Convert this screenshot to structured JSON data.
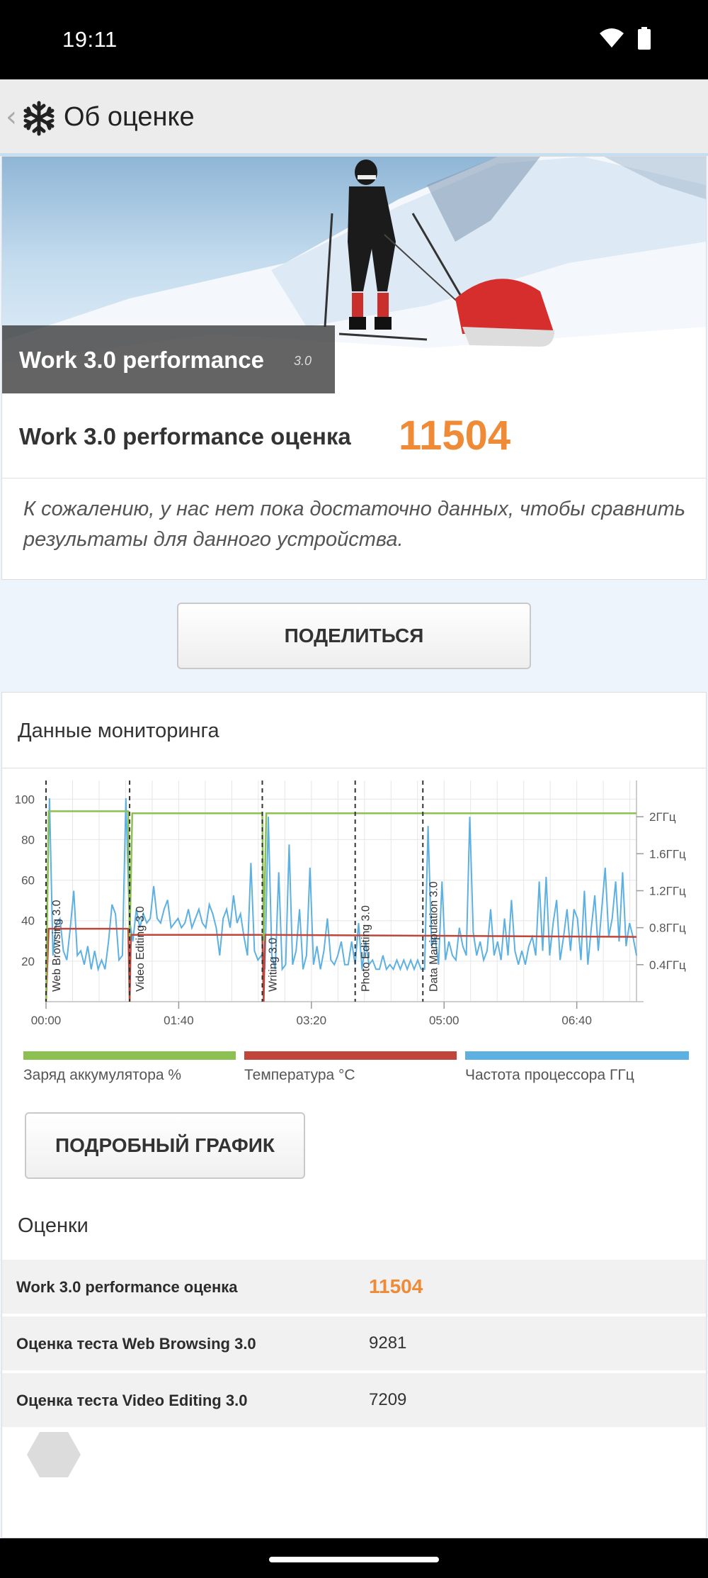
{
  "status_bar": {
    "time": "19:11",
    "icons": [
      "wifi-icon",
      "battery-icon"
    ]
  },
  "toolbar": {
    "back_icon": "chevron-left-icon",
    "app_icon": "snowflake-icon",
    "title": "Об оценке"
  },
  "hero": {
    "title": "Work 3.0 performance",
    "version": "3.0"
  },
  "score": {
    "label": "Work 3.0 performance оценка",
    "value": "11504"
  },
  "notice": "К сожалению, у нас нет пока достаточно данных, чтобы сравнить результаты для данного устройства.",
  "share_button": "ПОДЕЛИТЬСЯ",
  "monitoring": {
    "title": "Данные мониторинга",
    "detail_button": "ПОДРОБНЫЙ ГРАФИК",
    "legend": [
      {
        "label": "Заряд аккумулятора %",
        "color": "#8cc152"
      },
      {
        "label": "Температура °C",
        "color": "#c0453a"
      },
      {
        "label": "Частота процессора ГГц",
        "color": "#5db0e2"
      }
    ]
  },
  "scores": {
    "title": "Оценки",
    "rows": [
      {
        "name": "Work 3.0 performance оценка",
        "value": "11504"
      },
      {
        "name": "Оценка теста Web Browsing 3.0",
        "value": "9281"
      },
      {
        "name": "Оценка теста Video Editing 3.0",
        "value": "7209"
      }
    ]
  },
  "chart_data": {
    "type": "line",
    "x_ticks": [
      "00:00",
      "01:40",
      "03:20",
      "05:00",
      "06:40"
    ],
    "x_tick_seconds": [
      0,
      100,
      200,
      300,
      400
    ],
    "x_range_seconds": [
      0,
      445
    ],
    "y_left_ticks": [
      "20",
      "40",
      "60",
      "80",
      "100"
    ],
    "y_left_range": [
      0,
      105
    ],
    "y_right_ticks": [
      "0.4ГГц",
      "0.8ГГц",
      "1.2ГГц",
      "1.6ГГц",
      "2ГГц"
    ],
    "y_right_range_ghz": [
      0,
      2.3
    ],
    "grid": true,
    "test_markers": [
      {
        "label": "Web Browsing 3.0",
        "x": 0
      },
      {
        "label": "Video Editing 3.0",
        "x": 63
      },
      {
        "label": "Writing 3.0",
        "x": 163
      },
      {
        "label": "Photo Editing 3.0",
        "x": 233
      },
      {
        "label": "Data Manipulation 3.0",
        "x": 284
      }
    ],
    "series": [
      {
        "name": "Заряд аккумулятора %",
        "color": "#8cc152",
        "points": [
          [
            0,
            0
          ],
          [
            2,
            94
          ],
          [
            62,
            94
          ],
          [
            63,
            30
          ],
          [
            65,
            93
          ],
          [
            163,
            93
          ],
          [
            164,
            30
          ],
          [
            166,
            93
          ],
          [
            445,
            93
          ]
        ]
      },
      {
        "name": "Температура °C",
        "color": "#c0453a",
        "points": [
          [
            0,
            0
          ],
          [
            2,
            36
          ],
          [
            62,
            36
          ],
          [
            63,
            0
          ],
          [
            64,
            33
          ],
          [
            163,
            33
          ],
          [
            164,
            0
          ],
          [
            165,
            33
          ],
          [
            445,
            32
          ]
        ]
      },
      {
        "name": "Частота процессора ГГц",
        "color": "#5db0e2",
        "values_ghz": [
          0.3,
          2.2,
          0.5,
          0.85,
          0.9,
          0.55,
          0.45,
          0.8,
          1.2,
          0.5,
          0.55,
          0.4,
          0.6,
          0.35,
          0.55,
          0.35,
          0.45,
          0.35,
          0.65,
          1.05,
          0.95,
          0.45,
          0.5,
          2.2,
          0.9,
          0.65,
          1.0,
          0.8,
          0.95,
          0.85,
          0.9,
          1.25,
          0.9,
          0.85,
          1.0,
          1.1,
          0.8,
          0.85,
          0.9,
          0.8,
          0.85,
          1.0,
          0.8,
          0.9,
          1.0,
          0.85,
          0.8,
          1.05,
          0.95,
          0.8,
          0.5,
          0.9,
          1.0,
          0.8,
          1.15,
          0.85,
          0.95,
          0.7,
          0.5,
          1.5,
          0.55,
          0.45,
          0.5,
          0.35,
          2.0,
          0.5,
          0.35,
          1.4,
          0.35,
          0.4,
          1.7,
          0.4,
          0.55,
          1.0,
          0.35,
          0.5,
          1.45,
          0.4,
          0.6,
          0.35,
          0.55,
          0.9,
          0.45,
          0.4,
          0.5,
          0.65,
          0.4,
          0.4,
          0.65,
          0.4,
          0.85,
          0.35,
          0.65,
          0.4,
          0.45,
          0.35,
          0.35,
          0.5,
          0.35,
          0.4,
          0.35,
          0.45,
          0.35,
          0.45,
          0.35,
          0.45,
          0.35,
          0.45,
          0.35,
          0.35,
          1.9,
          0.6,
          0.7,
          0.4,
          1.3,
          0.45,
          0.65,
          0.5,
          0.45,
          0.8,
          0.6,
          0.5,
          2.0,
          0.75,
          0.5,
          0.65,
          0.45,
          0.55,
          1.0,
          0.5,
          0.65,
          0.45,
          0.9,
          0.5,
          1.1,
          0.55,
          0.4,
          0.55,
          0.4,
          0.6,
          0.7,
          0.5,
          1.3,
          0.55,
          1.35,
          0.5,
          0.85,
          1.1,
          0.45,
          0.7,
          1.0,
          0.55,
          1.0,
          0.9,
          0.45,
          1.2,
          0.4,
          0.8,
          1.15,
          0.55,
          1.0,
          1.45,
          0.7,
          0.9,
          1.3,
          0.65,
          1.4,
          0.6,
          0.85,
          0.7,
          0.5
        ]
      }
    ]
  }
}
